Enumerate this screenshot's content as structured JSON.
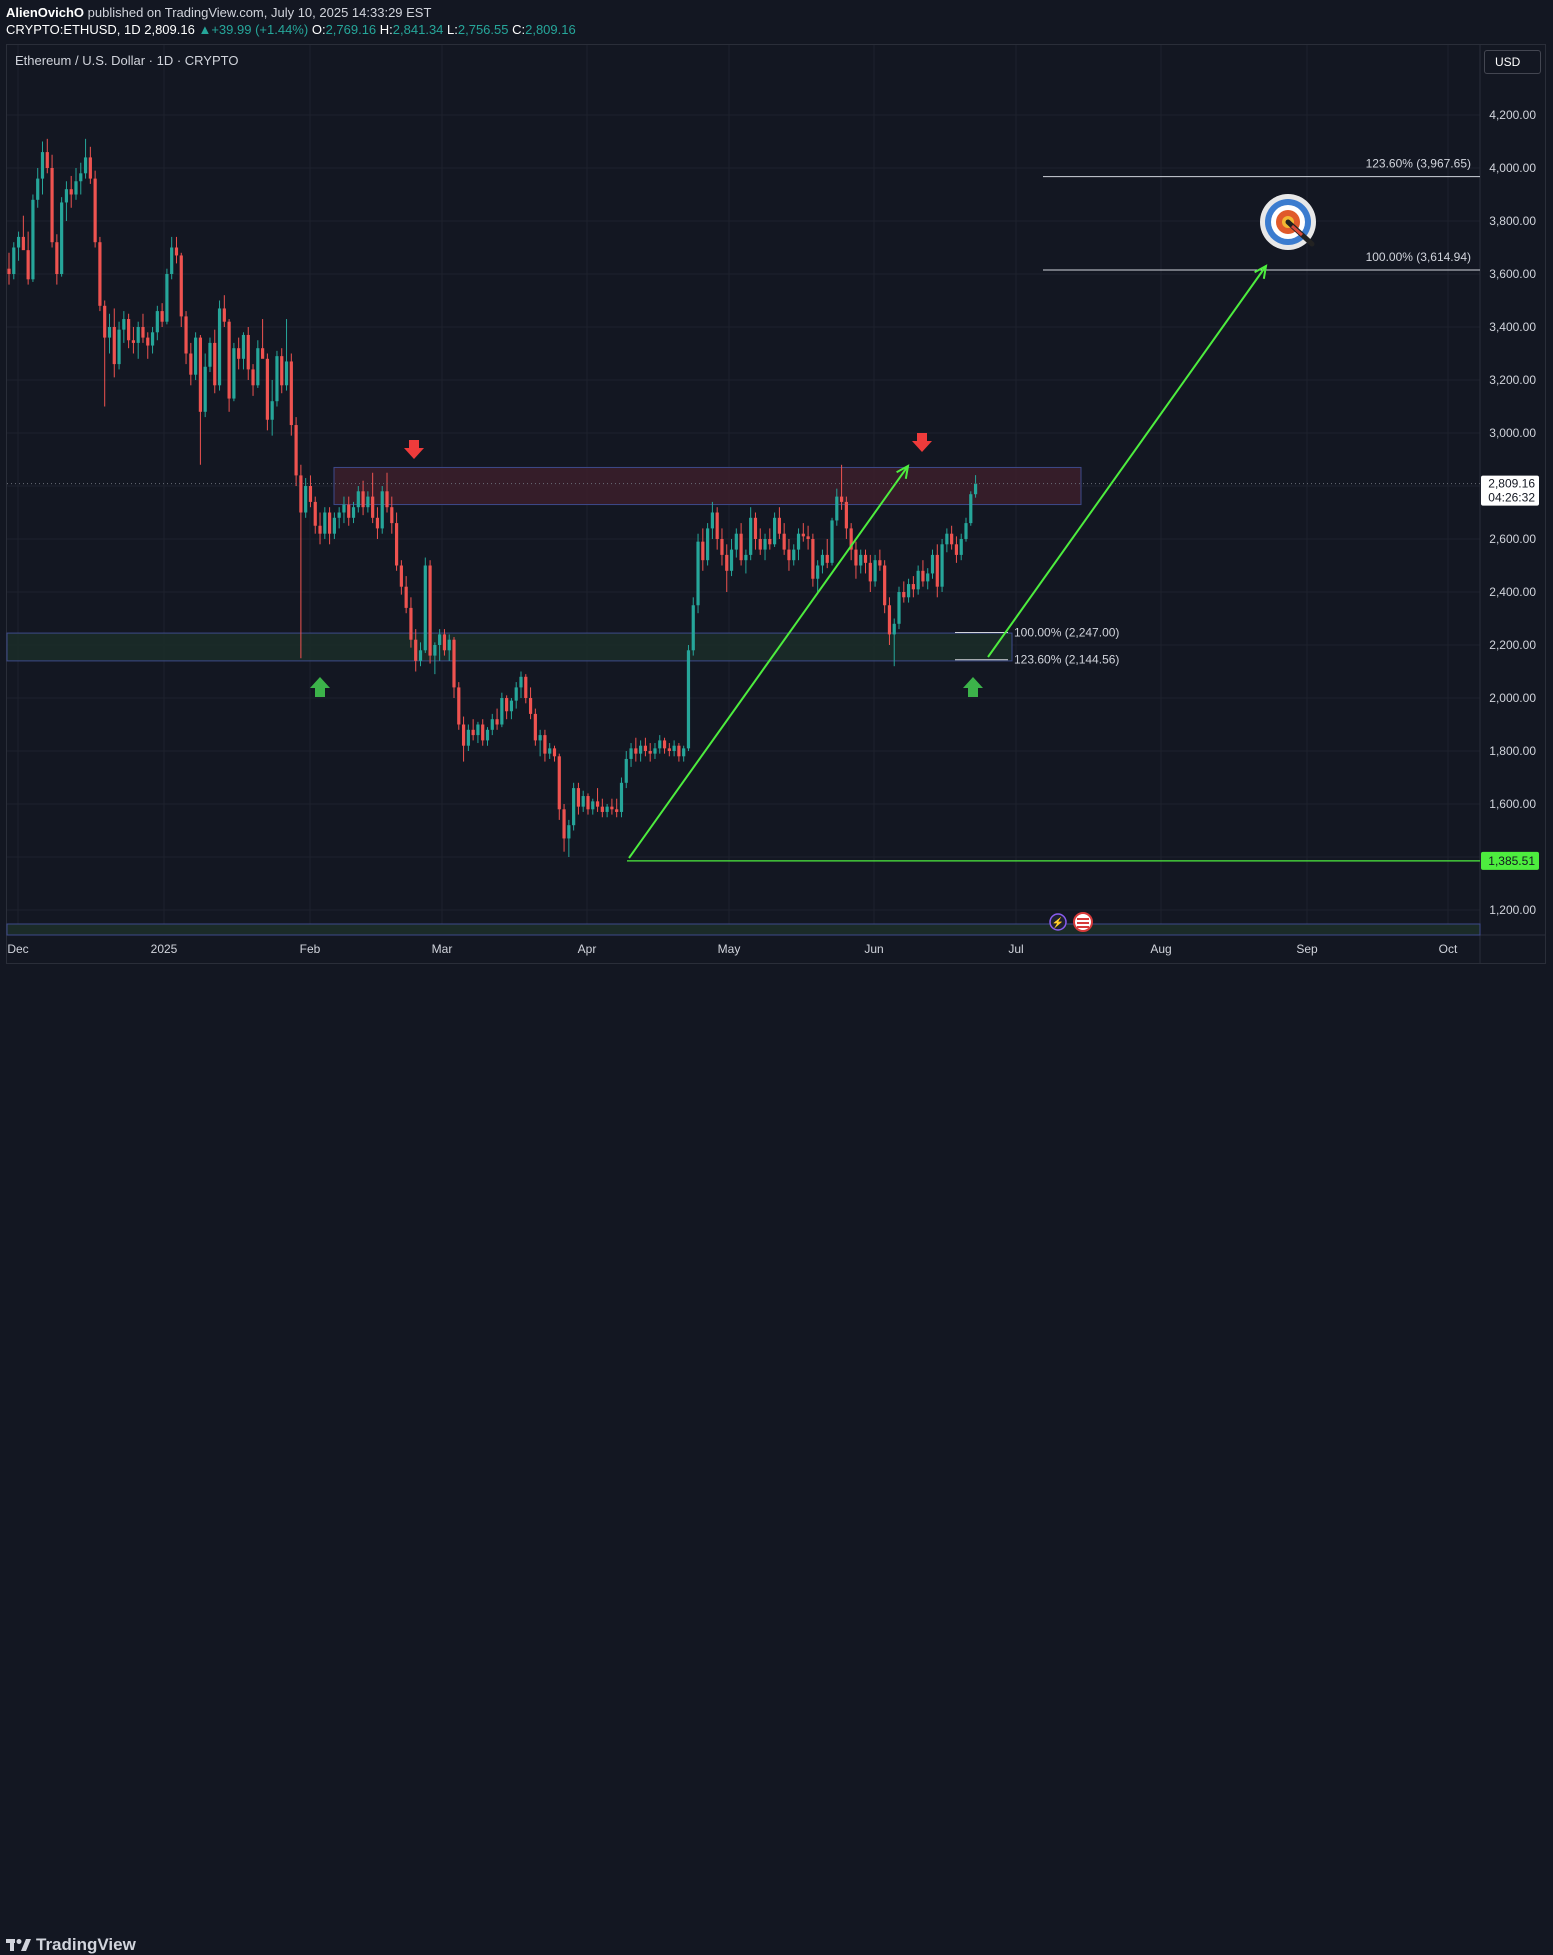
{
  "header": {
    "author": "AlienOvichO",
    "published_text": "published on TradingView.com, July 10, 2025 14:33:29 EST",
    "symbol": "CRYPTO:ETHUSD, 1D",
    "last": "2,809.16",
    "change": "+39.99 (+1.44%)",
    "open_label": "O:",
    "open": "2,769.16",
    "high_label": "H:",
    "high": "2,841.34",
    "low_label": "L:",
    "low": "2,756.55",
    "close_label": "C:",
    "close": "2,809.16"
  },
  "legend_title": "Ethereum / U.S. Dollar · 1D · CRYPTO",
  "currency": "USD",
  "footer_logo": "TradingView",
  "colors": {
    "up": "#26a69a",
    "down": "#ef5350",
    "background": "#131722",
    "grid": "#1e222d",
    "arrow": "#4ded3e",
    "resistance_zone": "#3a1e2a",
    "support_zone": "#1b2b28"
  },
  "chart_data": {
    "type": "candlestick",
    "y_axis": {
      "ticks": [
        1200,
        1400,
        1600,
        1800,
        2000,
        2200,
        2400,
        2600,
        2800,
        3000,
        3200,
        3400,
        3600,
        3800,
        4000,
        4200
      ],
      "tick_labels": [
        "1,200.00",
        "1,400.00",
        "1,600.00",
        "1,800.00",
        "2,000.00",
        "2,200.00",
        "2,400.00",
        "2,600.00",
        "2,800.00",
        "3,000.00",
        "3,200.00",
        "3,400.00",
        "3,600.00",
        "3,800.00",
        "4,000.00",
        "4,200.00"
      ],
      "range": [
        1100,
        4400
      ]
    },
    "x_axis": {
      "labels": [
        "Dec",
        "2025",
        "Feb",
        "Mar",
        "Apr",
        "May",
        "Jun",
        "Jul",
        "Aug",
        "Sep",
        "Oct"
      ]
    },
    "price_labels": [
      {
        "value": 2809.16,
        "text": "2,809.16",
        "sub": "04:26:32"
      },
      {
        "value": 1385.51,
        "text": "1,385.51"
      }
    ],
    "ohlc_series": [
      [
        3620,
        3680,
        3560,
        3600
      ],
      [
        3600,
        3720,
        3580,
        3700
      ],
      [
        3700,
        3760,
        3650,
        3740
      ],
      [
        3740,
        3820,
        3700,
        3690
      ],
      [
        3690,
        3760,
        3560,
        3580
      ],
      [
        3580,
        3900,
        3570,
        3880
      ],
      [
        3880,
        4000,
        3850,
        3960
      ],
      [
        3960,
        4100,
        3900,
        4060
      ],
      [
        4060,
        4110,
        3980,
        4000
      ],
      [
        4000,
        4050,
        3700,
        3720
      ],
      [
        3720,
        3750,
        3560,
        3600
      ],
      [
        3600,
        3890,
        3590,
        3870
      ],
      [
        3870,
        3950,
        3800,
        3920
      ],
      [
        3920,
        3970,
        3850,
        3900
      ],
      [
        3900,
        4000,
        3880,
        3950
      ],
      [
        3950,
        4020,
        3900,
        3980
      ],
      [
        3980,
        4110,
        3960,
        4040
      ],
      [
        4040,
        4080,
        3940,
        3960
      ],
      [
        3960,
        3990,
        3700,
        3720
      ],
      [
        3720,
        3740,
        3460,
        3480
      ],
      [
        3480,
        3500,
        3100,
        3360
      ],
      [
        3360,
        3450,
        3300,
        3400
      ],
      [
        3400,
        3470,
        3210,
        3260
      ],
      [
        3260,
        3420,
        3240,
        3390
      ],
      [
        3390,
        3460,
        3340,
        3430
      ],
      [
        3430,
        3450,
        3320,
        3350
      ],
      [
        3350,
        3400,
        3300,
        3340
      ],
      [
        3340,
        3420,
        3280,
        3400
      ],
      [
        3400,
        3450,
        3340,
        3360
      ],
      [
        3360,
        3380,
        3280,
        3330
      ],
      [
        3330,
        3400,
        3300,
        3380
      ],
      [
        3380,
        3480,
        3350,
        3460
      ],
      [
        3460,
        3490,
        3400,
        3420
      ],
      [
        3420,
        3620,
        3410,
        3600
      ],
      [
        3600,
        3740,
        3580,
        3700
      ],
      [
        3700,
        3740,
        3640,
        3670
      ],
      [
        3670,
        3680,
        3400,
        3440
      ],
      [
        3440,
        3460,
        3260,
        3300
      ],
      [
        3300,
        3340,
        3180,
        3220
      ],
      [
        3220,
        3380,
        3200,
        3360
      ],
      [
        3360,
        3370,
        2880,
        3080
      ],
      [
        3080,
        3300,
        3060,
        3250
      ],
      [
        3250,
        3360,
        3230,
        3340
      ],
      [
        3340,
        3390,
        3150,
        3180
      ],
      [
        3180,
        3500,
        3160,
        3470
      ],
      [
        3470,
        3520,
        3400,
        3420
      ],
      [
        3420,
        3430,
        3080,
        3130
      ],
      [
        3130,
        3340,
        3120,
        3320
      ],
      [
        3320,
        3360,
        3240,
        3280
      ],
      [
        3280,
        3380,
        3240,
        3370
      ],
      [
        3370,
        3400,
        3200,
        3240
      ],
      [
        3240,
        3260,
        3140,
        3180
      ],
      [
        3180,
        3350,
        3170,
        3320
      ],
      [
        3320,
        3430,
        3300,
        3280
      ],
      [
        3280,
        3300,
        3010,
        3050
      ],
      [
        3050,
        3200,
        2990,
        3120
      ],
      [
        3120,
        3310,
        3100,
        3290
      ],
      [
        3290,
        3320,
        3150,
        3180
      ],
      [
        3180,
        3430,
        3160,
        3270
      ],
      [
        3270,
        3300,
        2990,
        3030
      ],
      [
        3030,
        3060,
        2800,
        2840
      ],
      [
        2840,
        2880,
        2150,
        2700
      ],
      [
        2700,
        2830,
        2680,
        2800
      ],
      [
        2800,
        2840,
        2720,
        2740
      ],
      [
        2740,
        2760,
        2620,
        2650
      ],
      [
        2650,
        2700,
        2580,
        2620
      ],
      [
        2620,
        2720,
        2600,
        2700
      ],
      [
        2700,
        2720,
        2580,
        2620
      ],
      [
        2620,
        2700,
        2600,
        2680
      ],
      [
        2680,
        2720,
        2640,
        2700
      ],
      [
        2700,
        2760,
        2660,
        2730
      ],
      [
        2730,
        2760,
        2650,
        2680
      ],
      [
        2680,
        2740,
        2660,
        2720
      ],
      [
        2720,
        2800,
        2700,
        2780
      ],
      [
        2780,
        2820,
        2690,
        2720
      ],
      [
        2720,
        2780,
        2700,
        2760
      ],
      [
        2760,
        2850,
        2660,
        2680
      ],
      [
        2680,
        2720,
        2600,
        2640
      ],
      [
        2640,
        2800,
        2620,
        2780
      ],
      [
        2780,
        2850,
        2700,
        2720
      ],
      [
        2720,
        2760,
        2620,
        2660
      ],
      [
        2660,
        2700,
        2480,
        2500
      ],
      [
        2500,
        2520,
        2390,
        2420
      ],
      [
        2420,
        2460,
        2320,
        2340
      ],
      [
        2340,
        2380,
        2190,
        2220
      ],
      [
        2220,
        2260,
        2100,
        2140
      ],
      [
        2140,
        2210,
        2120,
        2180
      ],
      [
        2180,
        2530,
        2170,
        2500
      ],
      [
        2500,
        2520,
        2130,
        2160
      ],
      [
        2160,
        2210,
        2090,
        2200
      ],
      [
        2200,
        2260,
        2140,
        2240
      ],
      [
        2240,
        2260,
        2160,
        2180
      ],
      [
        2180,
        2240,
        2140,
        2220
      ],
      [
        2220,
        2230,
        2000,
        2040
      ],
      [
        2040,
        2060,
        1880,
        1900
      ],
      [
        1900,
        1930,
        1760,
        1820
      ],
      [
        1820,
        1900,
        1800,
        1880
      ],
      [
        1880,
        1920,
        1840,
        1860
      ],
      [
        1860,
        1910,
        1830,
        1900
      ],
      [
        1900,
        1920,
        1820,
        1840
      ],
      [
        1840,
        1890,
        1820,
        1880
      ],
      [
        1880,
        1940,
        1860,
        1920
      ],
      [
        1920,
        1960,
        1880,
        1900
      ],
      [
        1900,
        2020,
        1890,
        2000
      ],
      [
        2000,
        2010,
        1920,
        1950
      ],
      [
        1950,
        2000,
        1920,
        1990
      ],
      [
        1990,
        2060,
        1960,
        2040
      ],
      [
        2040,
        2100,
        2000,
        2080
      ],
      [
        2080,
        2090,
        1980,
        2000
      ],
      [
        2000,
        2040,
        1920,
        1940
      ],
      [
        1940,
        1960,
        1820,
        1840
      ],
      [
        1840,
        1880,
        1780,
        1860
      ],
      [
        1860,
        1880,
        1760,
        1790
      ],
      [
        1790,
        1830,
        1770,
        1810
      ],
      [
        1810,
        1820,
        1760,
        1780
      ],
      [
        1780,
        1790,
        1540,
        1580
      ],
      [
        1580,
        1600,
        1420,
        1470
      ],
      [
        1470,
        1540,
        1400,
        1520
      ],
      [
        1520,
        1680,
        1500,
        1660
      ],
      [
        1660,
        1680,
        1560,
        1590
      ],
      [
        1590,
        1650,
        1570,
        1630
      ],
      [
        1630,
        1640,
        1560,
        1580
      ],
      [
        1580,
        1620,
        1560,
        1610
      ],
      [
        1610,
        1660,
        1570,
        1590
      ],
      [
        1590,
        1620,
        1550,
        1570
      ],
      [
        1570,
        1600,
        1550,
        1590
      ],
      [
        1590,
        1620,
        1560,
        1580
      ],
      [
        1580,
        1620,
        1550,
        1570
      ],
      [
        1570,
        1700,
        1550,
        1680
      ],
      [
        1680,
        1800,
        1660,
        1770
      ],
      [
        1770,
        1830,
        1740,
        1810
      ],
      [
        1810,
        1850,
        1760,
        1790
      ],
      [
        1790,
        1840,
        1760,
        1820
      ],
      [
        1820,
        1850,
        1780,
        1800
      ],
      [
        1800,
        1830,
        1760,
        1790
      ],
      [
        1790,
        1830,
        1770,
        1810
      ],
      [
        1810,
        1860,
        1790,
        1840
      ],
      [
        1840,
        1850,
        1790,
        1810
      ],
      [
        1810,
        1830,
        1780,
        1800
      ],
      [
        1800,
        1840,
        1780,
        1820
      ],
      [
        1820,
        1830,
        1760,
        1780
      ],
      [
        1780,
        1820,
        1760,
        1810
      ],
      [
        1810,
        2200,
        1800,
        2180
      ],
      [
        2180,
        2380,
        2160,
        2350
      ],
      [
        2350,
        2620,
        2320,
        2590
      ],
      [
        2590,
        2640,
        2480,
        2520
      ],
      [
        2520,
        2660,
        2500,
        2640
      ],
      [
        2640,
        2740,
        2600,
        2700
      ],
      [
        2700,
        2720,
        2560,
        2600
      ],
      [
        2600,
        2640,
        2500,
        2540
      ],
      [
        2540,
        2580,
        2400,
        2480
      ],
      [
        2480,
        2600,
        2460,
        2560
      ],
      [
        2560,
        2640,
        2530,
        2620
      ],
      [
        2620,
        2660,
        2500,
        2520
      ],
      [
        2520,
        2560,
        2470,
        2540
      ],
      [
        2540,
        2720,
        2520,
        2680
      ],
      [
        2680,
        2700,
        2560,
        2600
      ],
      [
        2600,
        2640,
        2540,
        2560
      ],
      [
        2560,
        2620,
        2520,
        2600
      ],
      [
        2600,
        2640,
        2560,
        2580
      ],
      [
        2580,
        2700,
        2570,
        2680
      ],
      [
        2680,
        2720,
        2600,
        2620
      ],
      [
        2620,
        2660,
        2540,
        2560
      ],
      [
        2560,
        2600,
        2480,
        2520
      ],
      [
        2520,
        2580,
        2500,
        2560
      ],
      [
        2560,
        2640,
        2520,
        2620
      ],
      [
        2620,
        2660,
        2590,
        2610
      ],
      [
        2610,
        2650,
        2560,
        2600
      ],
      [
        2600,
        2620,
        2420,
        2450
      ],
      [
        2450,
        2520,
        2400,
        2500
      ],
      [
        2500,
        2560,
        2470,
        2540
      ],
      [
        2540,
        2600,
        2490,
        2510
      ],
      [
        2510,
        2680,
        2500,
        2670
      ],
      [
        2670,
        2790,
        2650,
        2760
      ],
      [
        2760,
        2880,
        2710,
        2740
      ],
      [
        2740,
        2760,
        2600,
        2640
      ],
      [
        2640,
        2660,
        2520,
        2560
      ],
      [
        2560,
        2590,
        2450,
        2500
      ],
      [
        2500,
        2560,
        2470,
        2540
      ],
      [
        2540,
        2560,
        2470,
        2510
      ],
      [
        2510,
        2540,
        2400,
        2440
      ],
      [
        2440,
        2540,
        2420,
        2520
      ],
      [
        2520,
        2560,
        2480,
        2500
      ],
      [
        2500,
        2520,
        2320,
        2350
      ],
      [
        2350,
        2380,
        2200,
        2240
      ],
      [
        2240,
        2300,
        2120,
        2280
      ],
      [
        2280,
        2420,
        2260,
        2400
      ],
      [
        2400,
        2440,
        2360,
        2380
      ],
      [
        2380,
        2450,
        2360,
        2430
      ],
      [
        2430,
        2460,
        2380,
        2410
      ],
      [
        2410,
        2500,
        2390,
        2480
      ],
      [
        2480,
        2520,
        2420,
        2440
      ],
      [
        2440,
        2490,
        2410,
        2470
      ],
      [
        2470,
        2560,
        2450,
        2540
      ],
      [
        2540,
        2580,
        2380,
        2420
      ],
      [
        2420,
        2600,
        2400,
        2580
      ],
      [
        2580,
        2640,
        2550,
        2620
      ],
      [
        2620,
        2650,
        2560,
        2580
      ],
      [
        2580,
        2610,
        2510,
        2540
      ],
      [
        2540,
        2620,
        2520,
        2600
      ],
      [
        2600,
        2680,
        2590,
        2660
      ],
      [
        2660,
        2780,
        2650,
        2769
      ],
      [
        2769,
        2841,
        2756,
        2809
      ]
    ],
    "zones": [
      {
        "name": "resistance",
        "from": 2730,
        "to": 2870
      },
      {
        "name": "support",
        "from": 2140,
        "to": 2245
      }
    ],
    "fib_levels": [
      {
        "label": "123.60% (3,967.65)",
        "value": 3967.65
      },
      {
        "label": "100.00% (3,614.94)",
        "value": 3614.94
      },
      {
        "label": "100.00% (2,247.00)",
        "value": 2247.0
      },
      {
        "label": "123.60% (2,144.56)",
        "value": 2144.56
      }
    ],
    "horizontal_line": {
      "value": 1385.51
    },
    "grid": true
  }
}
